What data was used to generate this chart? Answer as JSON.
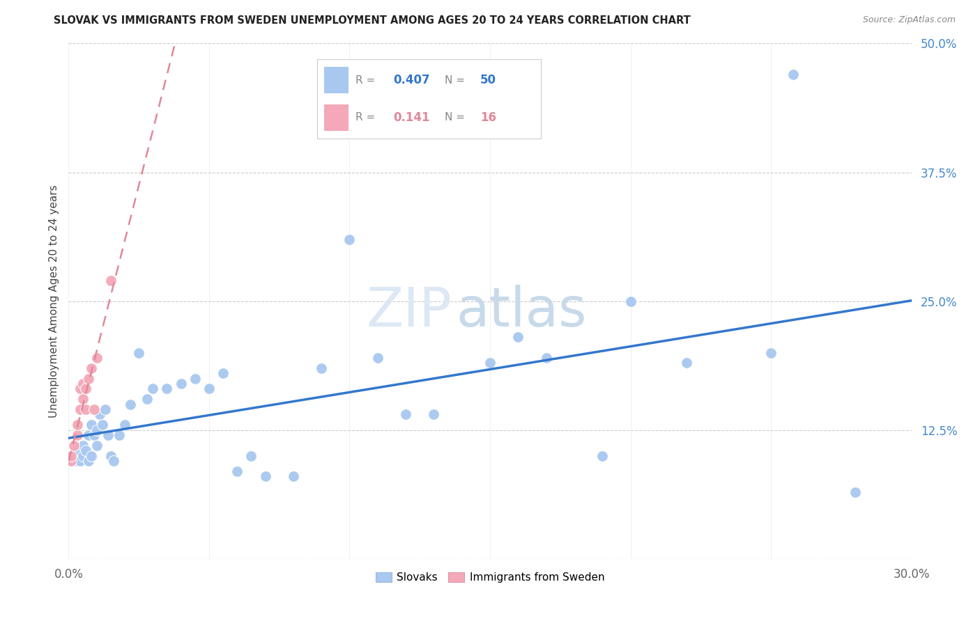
{
  "title": "SLOVAK VS IMMIGRANTS FROM SWEDEN UNEMPLOYMENT AMONG AGES 20 TO 24 YEARS CORRELATION CHART",
  "source": "Source: ZipAtlas.com",
  "ylabel": "Unemployment Among Ages 20 to 24 years",
  "xlim": [
    0.0,
    0.3
  ],
  "ylim": [
    0.0,
    0.5
  ],
  "xticks": [
    0.0,
    0.05,
    0.1,
    0.15,
    0.2,
    0.25,
    0.3
  ],
  "yticks": [
    0.0,
    0.125,
    0.25,
    0.375,
    0.5
  ],
  "Slovak_R": 0.407,
  "Slovak_N": 50,
  "Sweden_R": 0.141,
  "Sweden_N": 16,
  "slovak_color": "#a8c8f0",
  "sweden_color": "#f4a8b8",
  "trendline_slovak_color": "#3377cc",
  "trendline_sweden_color": "#e08898",
  "grid_color": "#cccccc",
  "watermark_zip_color": "#dce8f4",
  "watermark_atlas_color": "#c8daea",
  "title_color": "#222222",
  "source_color": "#888888",
  "ylabel_color": "#444444",
  "ytick_color": "#4488cc",
  "xtick_color": "#666666",
  "legend_label_color": "#888888",
  "slovak_x": [
    0.001,
    0.002,
    0.003,
    0.003,
    0.004,
    0.005,
    0.005,
    0.006,
    0.007,
    0.007,
    0.008,
    0.008,
    0.009,
    0.01,
    0.01,
    0.011,
    0.012,
    0.013,
    0.014,
    0.015,
    0.016,
    0.018,
    0.02,
    0.022,
    0.025,
    0.028,
    0.03,
    0.035,
    0.04,
    0.045,
    0.05,
    0.055,
    0.06,
    0.065,
    0.07,
    0.08,
    0.09,
    0.1,
    0.11,
    0.12,
    0.13,
    0.15,
    0.16,
    0.17,
    0.19,
    0.2,
    0.22,
    0.25,
    0.258,
    0.28
  ],
  "slovak_y": [
    0.095,
    0.1,
    0.105,
    0.095,
    0.095,
    0.1,
    0.11,
    0.105,
    0.095,
    0.12,
    0.1,
    0.13,
    0.12,
    0.125,
    0.11,
    0.14,
    0.13,
    0.145,
    0.12,
    0.1,
    0.095,
    0.12,
    0.13,
    0.15,
    0.2,
    0.155,
    0.165,
    0.165,
    0.17,
    0.175,
    0.165,
    0.18,
    0.085,
    0.1,
    0.08,
    0.08,
    0.185,
    0.31,
    0.195,
    0.14,
    0.14,
    0.19,
    0.215,
    0.195,
    0.1,
    0.25,
    0.19,
    0.2,
    0.47,
    0.065
  ],
  "sweden_x": [
    0.001,
    0.001,
    0.002,
    0.003,
    0.003,
    0.004,
    0.004,
    0.005,
    0.005,
    0.006,
    0.006,
    0.007,
    0.008,
    0.009,
    0.01,
    0.015
  ],
  "sweden_y": [
    0.095,
    0.1,
    0.11,
    0.12,
    0.13,
    0.145,
    0.165,
    0.155,
    0.17,
    0.145,
    0.165,
    0.175,
    0.185,
    0.145,
    0.195,
    0.27
  ]
}
